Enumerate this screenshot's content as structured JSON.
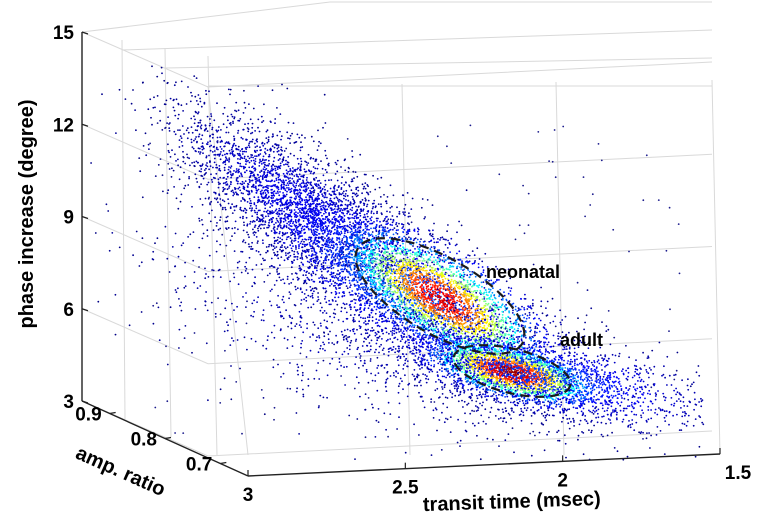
{
  "chart_data": {
    "type": "scatter",
    "projection": "3d",
    "axes": {
      "z": {
        "label": "phase increase (degree)",
        "ticks": [
          3,
          6,
          9,
          12,
          15
        ],
        "range": [
          3,
          15
        ]
      },
      "x": {
        "label": "transit time (msec)",
        "ticks": [
          3,
          2.5,
          2,
          1.5
        ],
        "range": [
          1.5,
          3
        ],
        "reversed": true
      },
      "y": {
        "label": "amp. ratio",
        "ticks": [
          0.9,
          0.8,
          0.7
        ],
        "range": [
          0.65,
          0.95
        ]
      }
    },
    "grid": true,
    "colormap": "jet (point density: blue = low, red = high)",
    "clusters": [
      {
        "label": "neonatal",
        "center": {
          "transit_time": 2.45,
          "phase": 6.0
        },
        "outline": "dashed ellipse"
      },
      {
        "label": "adult",
        "center": {
          "transit_time": 2.05,
          "phase": 4.2
        },
        "outline": "dashed ellipse"
      }
    ],
    "annotations": [
      "neonatal",
      "adult"
    ]
  }
}
